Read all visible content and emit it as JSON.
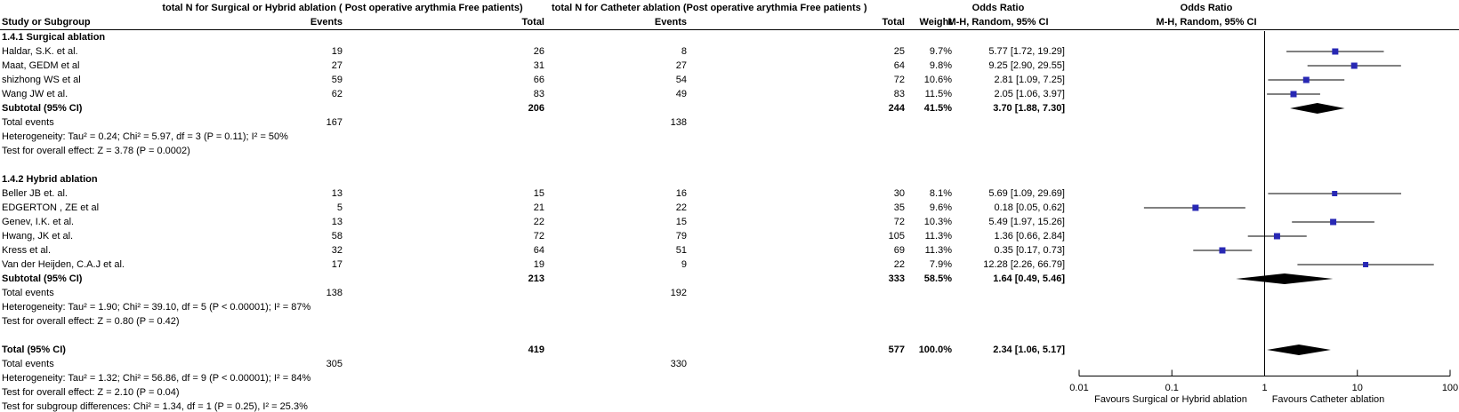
{
  "colors": {
    "square": "#2828b4",
    "ci_line": "#000000",
    "diamond": "#000000",
    "axis": "#000000",
    "rule": "#000000",
    "text": "#000000",
    "background": "#ffffff"
  },
  "header": {
    "group1": "total N for Surgical or Hybrid ablation ( Post operative arythmia Free patients)",
    "group2": "total N for Catheter ablation (Post operative arythmia Free patients )",
    "or_title": "Odds Ratio",
    "or_method": "M-H, Random, 95% CI",
    "plot_title": "Odds Ratio",
    "plot_method": "M-H, Random, 95% CI",
    "study": "Study or Subgroup",
    "events1": "Events",
    "total1": "Total",
    "events2": "Events",
    "total2": "Total",
    "weight": "Weight"
  },
  "rows": [
    {
      "type": "section",
      "label": "1.4.1 Surgical ablation"
    },
    {
      "type": "study",
      "label": "Haldar, S.K. et al.",
      "e1": "19",
      "t1": "26",
      "e2": "8",
      "t2": "25",
      "weight": "9.7%",
      "ci": "5.77 [1.72, 19.29]",
      "or": 5.77,
      "lo": 1.72,
      "hi": 19.29,
      "w": 9.7
    },
    {
      "type": "study",
      "label": "Maat, GEDM et al",
      "e1": "27",
      "t1": "31",
      "e2": "27",
      "t2": "64",
      "weight": "9.8%",
      "ci": "9.25 [2.90, 29.55]",
      "or": 9.25,
      "lo": 2.9,
      "hi": 29.55,
      "w": 9.8
    },
    {
      "type": "study",
      "label": "shizhong WS et al",
      "e1": "59",
      "t1": "66",
      "e2": "54",
      "t2": "72",
      "weight": "10.6%",
      "ci": "2.81 [1.09, 7.25]",
      "or": 2.81,
      "lo": 1.09,
      "hi": 7.25,
      "w": 10.6
    },
    {
      "type": "study",
      "label": "Wang JW et al.",
      "e1": "62",
      "t1": "83",
      "e2": "49",
      "t2": "83",
      "weight": "11.5%",
      "ci": "2.05 [1.06, 3.97]",
      "or": 2.05,
      "lo": 1.06,
      "hi": 3.97,
      "w": 11.5
    },
    {
      "type": "subtotal",
      "label": "Subtotal (95% CI)",
      "t1": "206",
      "t2": "244",
      "weight": "41.5%",
      "ci": "3.70 [1.88, 7.30]",
      "or": 3.7,
      "lo": 1.88,
      "hi": 7.3
    },
    {
      "type": "events",
      "label": "Total events",
      "e1": "167",
      "e2": "138"
    },
    {
      "type": "note",
      "label": "Heterogeneity: Tau² = 0.24; Chi² = 5.97, df = 3 (P = 0.11); I² = 50%"
    },
    {
      "type": "note",
      "label": "Test for overall effect: Z = 3.78 (P = 0.0002)"
    },
    {
      "type": "blank"
    },
    {
      "type": "section",
      "label": "1.4.2 Hybrid ablation"
    },
    {
      "type": "study",
      "label": "Beller JB et. al.",
      "e1": "13",
      "t1": "15",
      "e2": "16",
      "t2": "30",
      "weight": "8.1%",
      "ci": "5.69 [1.09, 29.69]",
      "or": 5.69,
      "lo": 1.09,
      "hi": 29.69,
      "w": 8.1
    },
    {
      "type": "study",
      "label": "EDGERTON , ZE et al",
      "e1": "5",
      "t1": "21",
      "e2": "22",
      "t2": "35",
      "weight": "9.6%",
      "ci": "0.18 [0.05, 0.62]",
      "or": 0.18,
      "lo": 0.05,
      "hi": 0.62,
      "w": 9.6
    },
    {
      "type": "study",
      "label": "Genev, I.K. et al.",
      "e1": "13",
      "t1": "22",
      "e2": "15",
      "t2": "72",
      "weight": "10.3%",
      "ci": "5.49 [1.97, 15.26]",
      "or": 5.49,
      "lo": 1.97,
      "hi": 15.26,
      "w": 10.3
    },
    {
      "type": "study",
      "label": "Hwang, JK et al.",
      "e1": "58",
      "t1": "72",
      "e2": "79",
      "t2": "105",
      "weight": "11.3%",
      "ci": "1.36 [0.66, 2.84]",
      "or": 1.36,
      "lo": 0.66,
      "hi": 2.84,
      "w": 11.3
    },
    {
      "type": "study",
      "label": "Kress et al.",
      "e1": "32",
      "t1": "64",
      "e2": "51",
      "t2": "69",
      "weight": "11.3%",
      "ci": "0.35 [0.17, 0.73]",
      "or": 0.35,
      "lo": 0.17,
      "hi": 0.73,
      "w": 11.3
    },
    {
      "type": "study",
      "label": "Van der Heijden, C.A.J et al.",
      "e1": "17",
      "t1": "19",
      "e2": "9",
      "t2": "22",
      "weight": "7.9%",
      "ci": "12.28 [2.26, 66.79]",
      "or": 12.28,
      "lo": 2.26,
      "hi": 66.79,
      "w": 7.9
    },
    {
      "type": "subtotal",
      "label": "Subtotal (95% CI)",
      "t1": "213",
      "t2": "333",
      "weight": "58.5%",
      "ci": "1.64 [0.49, 5.46]",
      "or": 1.64,
      "lo": 0.49,
      "hi": 5.46
    },
    {
      "type": "events",
      "label": "Total events",
      "e1": "138",
      "e2": "192"
    },
    {
      "type": "note",
      "label": "Heterogeneity: Tau² = 1.90; Chi² = 39.10, df = 5 (P < 0.00001); I² = 87%"
    },
    {
      "type": "note",
      "label": "Test for overall effect: Z = 0.80 (P = 0.42)"
    },
    {
      "type": "blank"
    },
    {
      "type": "total",
      "label": "Total (95% CI)",
      "t1": "419",
      "t2": "577",
      "weight": "100.0%",
      "ci": "2.34 [1.06, 5.17]",
      "or": 2.34,
      "lo": 1.06,
      "hi": 5.17
    },
    {
      "type": "events",
      "label": "Total events",
      "e1": "305",
      "e2": "330"
    },
    {
      "type": "note",
      "label": "Heterogeneity: Tau² = 1.32; Chi² = 56.86, df = 9 (P < 0.00001); I² = 84%"
    },
    {
      "type": "note",
      "label": "Test for overall effect: Z = 2.10 (P = 0.04)"
    },
    {
      "type": "note",
      "label": "Test for subgroup differences: Chi² = 1.34, df = 1 (P = 0.25), I² = 25.3%"
    }
  ],
  "axis": {
    "scale": "log",
    "min": 0.01,
    "max": 100,
    "ticks": [
      "0.01",
      "0.1",
      "1",
      "10",
      "100"
    ],
    "tick_values": [
      0.01,
      0.1,
      1,
      10,
      100
    ],
    "caption_left": "Favours Surgical or Hybrid ablation",
    "caption_right": "Favours Catheter ablation"
  },
  "chart_data": {
    "type": "scatter",
    "subtype": "forest-plot",
    "title": "Odds Ratio",
    "method": "M-H, Random, 95% CI",
    "xscale": "log",
    "xlim": [
      0.01,
      100
    ],
    "xticks": [
      0.01,
      0.1,
      1,
      10,
      100
    ],
    "xlabel_left": "Favours Surgical or Hybrid ablation",
    "xlabel_right": "Favours Catheter ablation",
    "studies": [
      {
        "group": "1.4.1 Surgical ablation",
        "name": "Haldar, S.K. et al.",
        "or": 5.77,
        "ci_low": 1.72,
        "ci_high": 19.29,
        "weight_pct": 9.7
      },
      {
        "group": "1.4.1 Surgical ablation",
        "name": "Maat, GEDM et al",
        "or": 9.25,
        "ci_low": 2.9,
        "ci_high": 29.55,
        "weight_pct": 9.8
      },
      {
        "group": "1.4.1 Surgical ablation",
        "name": "shizhong WS et al",
        "or": 2.81,
        "ci_low": 1.09,
        "ci_high": 7.25,
        "weight_pct": 10.6
      },
      {
        "group": "1.4.1 Surgical ablation",
        "name": "Wang JW et al.",
        "or": 2.05,
        "ci_low": 1.06,
        "ci_high": 3.97,
        "weight_pct": 11.5
      },
      {
        "group": "1.4.2 Hybrid ablation",
        "name": "Beller JB et. al.",
        "or": 5.69,
        "ci_low": 1.09,
        "ci_high": 29.69,
        "weight_pct": 8.1
      },
      {
        "group": "1.4.2 Hybrid ablation",
        "name": "EDGERTON , ZE et al",
        "or": 0.18,
        "ci_low": 0.05,
        "ci_high": 0.62,
        "weight_pct": 9.6
      },
      {
        "group": "1.4.2 Hybrid ablation",
        "name": "Genev, I.K. et al.",
        "or": 5.49,
        "ci_low": 1.97,
        "ci_high": 15.26,
        "weight_pct": 10.3
      },
      {
        "group": "1.4.2 Hybrid ablation",
        "name": "Hwang, JK et al.",
        "or": 1.36,
        "ci_low": 0.66,
        "ci_high": 2.84,
        "weight_pct": 11.3
      },
      {
        "group": "1.4.2 Hybrid ablation",
        "name": "Kress et al.",
        "or": 0.35,
        "ci_low": 0.17,
        "ci_high": 0.73,
        "weight_pct": 11.3
      },
      {
        "group": "1.4.2 Hybrid ablation",
        "name": "Van der Heijden, C.A.J et al.",
        "or": 12.28,
        "ci_low": 2.26,
        "ci_high": 66.79,
        "weight_pct": 7.9
      }
    ],
    "summaries": [
      {
        "name": "Subtotal Surgical ablation",
        "or": 3.7,
        "ci_low": 1.88,
        "ci_high": 7.3,
        "weight_pct": 41.5
      },
      {
        "name": "Subtotal Hybrid ablation",
        "or": 1.64,
        "ci_low": 0.49,
        "ci_high": 5.46,
        "weight_pct": 58.5
      },
      {
        "name": "Total",
        "or": 2.34,
        "ci_low": 1.06,
        "ci_high": 5.17,
        "weight_pct": 100.0
      }
    ]
  }
}
